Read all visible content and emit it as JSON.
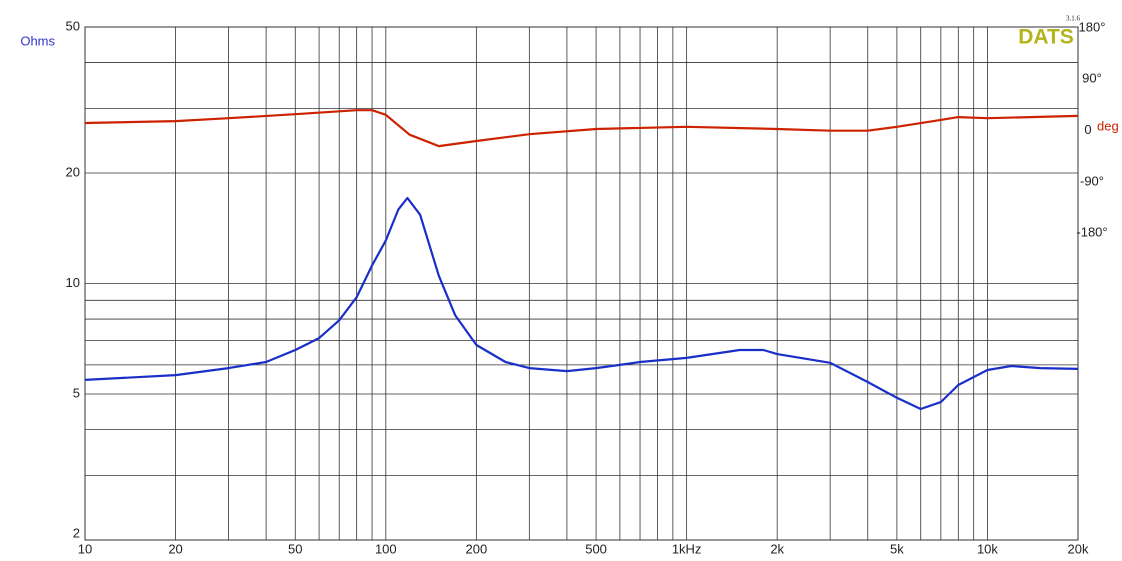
{
  "chart_data": {
    "type": "line",
    "log_x": true,
    "log_y": true,
    "grid": true,
    "y_label": "Ohms",
    "y_label_color": "#3333cc",
    "y2_label": "deg",
    "y2_label_color": "#cc2200",
    "watermark": "DATS",
    "watermark_color": "#b3b31a",
    "version": "3.1.6",
    "xlim": [
      10,
      20000
    ],
    "xticks": [
      10,
      20,
      50,
      100,
      200,
      500,
      {
        "value": 1000,
        "label": "1kHz"
      },
      {
        "value": 2000,
        "label": "2k"
      },
      {
        "value": 5000,
        "label": "5k"
      },
      {
        "value": 10000,
        "label": "10k"
      },
      {
        "value": 20000,
        "label": "20k"
      }
    ],
    "xminor": [
      30,
      40,
      60,
      70,
      80,
      90,
      300,
      400,
      600,
      700,
      800,
      900,
      3000,
      4000,
      6000,
      7000,
      8000,
      9000
    ],
    "ylim": [
      2,
      50
    ],
    "yticks": [
      2,
      5,
      10,
      20,
      50
    ],
    "yminor": [
      3,
      4,
      6,
      7,
      8,
      9,
      30,
      40
    ],
    "y2lim": [
      -720,
      180
    ],
    "y2ticks": [
      {
        "value": 180,
        "label": "180°"
      },
      {
        "value": 90,
        "label": "90°"
      },
      0,
      {
        "value": -90,
        "label": "-90°"
      },
      {
        "value": -180,
        "label": "-180°"
      }
    ],
    "series": [
      {
        "color": "#1a2fc8",
        "x": [
          10,
          20,
          30,
          40,
          50,
          60,
          70,
          80,
          90,
          100,
          110,
          118,
          130,
          150,
          170,
          200,
          250,
          300,
          400,
          500,
          600,
          700,
          1000,
          1500,
          1800,
          2000,
          3000,
          4000,
          5000,
          6000,
          7000,
          8000,
          10000,
          12000,
          15000,
          20000
        ],
        "values": [
          5.46,
          5.63,
          5.88,
          6.11,
          6.59,
          7.1,
          7.94,
          9.18,
          11.2,
          13.1,
          15.9,
          17.1,
          15.4,
          10.5,
          8.2,
          6.8,
          6.11,
          5.88,
          5.77,
          5.88,
          6.0,
          6.11,
          6.27,
          6.59,
          6.59,
          6.42,
          6.08,
          5.39,
          4.88,
          4.55,
          4.75,
          5.29,
          5.81,
          5.96,
          5.88,
          5.85
        ]
      },
      {
        "color": "#cc2200",
        "axis": "y2",
        "x": [
          10,
          20,
          30,
          50,
          80,
          90,
          100,
          120,
          150,
          200,
          300,
          500,
          1000,
          2000,
          3000,
          4000,
          5000,
          7000,
          8000,
          10000,
          20000
        ],
        "values": [
          11.6,
          15,
          20,
          27,
          34,
          34,
          26,
          -9,
          -29,
          -20,
          -8,
          1,
          5,
          1,
          -2,
          -2,
          5,
          17,
          22,
          20,
          24
        ]
      }
    ]
  }
}
